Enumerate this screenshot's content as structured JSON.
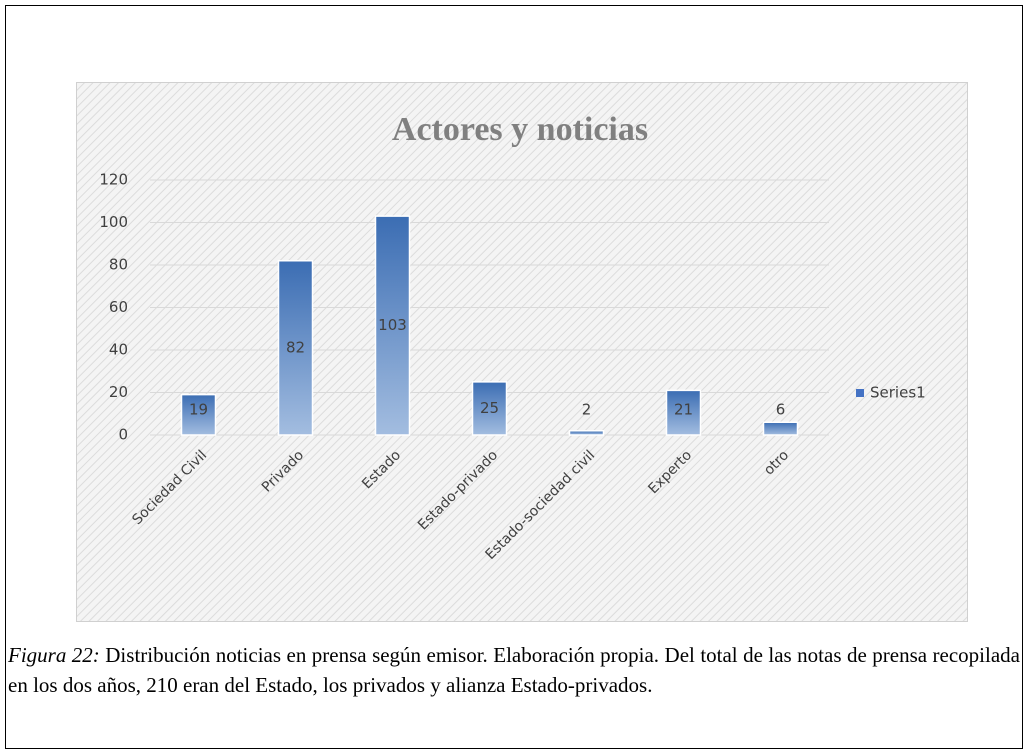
{
  "chart_data": {
    "type": "bar",
    "title": "Actores y noticias",
    "categories": [
      "Sociedad Civil",
      "Privado",
      "Estado",
      "Estado-privado",
      "Estado-sociedad civil",
      "Experto",
      "otro"
    ],
    "series": [
      {
        "name": "Series1",
        "color": "#4472c4",
        "values": [
          19,
          82,
          103,
          25,
          2,
          21,
          6
        ]
      }
    ],
    "ylim": [
      0,
      120
    ],
    "yticks": [
      0,
      20,
      40,
      60,
      80,
      100,
      120
    ],
    "grid": true,
    "legend": "right"
  },
  "caption": {
    "label": "Figura 22:",
    "text": "Distribución noticias en prensa según emisor. Elaboración propia. Del total de las notas de prensa  recopilada en los dos años, 210 eran del Estado, los privados y alianza Estado-privados."
  }
}
